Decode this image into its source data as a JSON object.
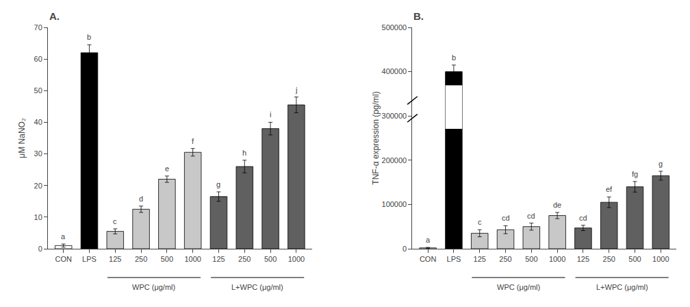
{
  "chart_data": [
    {
      "type": "bar",
      "title": "A.",
      "ylabel": "μM NaNO₂",
      "categories": [
        "CON",
        "LPS",
        "125",
        "250",
        "500",
        "1000",
        "125",
        "250",
        "500",
        "1000"
      ],
      "values": [
        1.0,
        62.0,
        5.5,
        12.5,
        22.0,
        30.5,
        16.5,
        26.0,
        38.0,
        45.5
      ],
      "errors": [
        0.5,
        2.5,
        0.8,
        1.0,
        1.0,
        1.2,
        1.5,
        2.0,
        2.0,
        2.5
      ],
      "bar_labels": [
        "a",
        "b",
        "c",
        "d",
        "e",
        "f",
        "g",
        "h",
        "i",
        "j"
      ],
      "colors": [
        "#ffffff",
        "#000000",
        "#c8c8c8",
        "#c8c8c8",
        "#c8c8c8",
        "#c8c8c8",
        "#606060",
        "#606060",
        "#606060",
        "#606060"
      ],
      "groups": [
        {
          "label": "WPC (μg/ml)",
          "indices": [
            2,
            5
          ]
        },
        {
          "label": "L+WPC (μg/ml)",
          "indices": [
            6,
            9
          ]
        }
      ],
      "ylim": [
        0,
        70
      ],
      "yticks": [
        0,
        10,
        20,
        30,
        40,
        50,
        60,
        70
      ],
      "grid": false
    },
    {
      "type": "bar",
      "title": "B.",
      "ylabel": "TNF-α expression (pg/ml)",
      "categories": [
        "CON",
        "LPS",
        "125",
        "250",
        "500",
        "1000",
        "125",
        "250",
        "500",
        "1000"
      ],
      "values": [
        2000,
        400000,
        35000,
        43000,
        50000,
        75000,
        47000,
        105000,
        140000,
        165000
      ],
      "errors": [
        1000,
        15000,
        8000,
        9000,
        8000,
        7000,
        6000,
        12000,
        12000,
        10000
      ],
      "bar_labels": [
        "a",
        "b",
        "c",
        "cd",
        "cd",
        "de",
        "cd",
        "ef",
        "fg",
        "g"
      ],
      "colors": [
        "#ffffff",
        "#000000",
        "#c8c8c8",
        "#c8c8c8",
        "#c8c8c8",
        "#c8c8c8",
        "#606060",
        "#606060",
        "#606060",
        "#606060"
      ],
      "groups": [
        {
          "label": "WPC (μg/ml)",
          "indices": [
            2,
            5
          ]
        },
        {
          "label": "L+WPC (μg/ml)",
          "indices": [
            6,
            9
          ]
        }
      ],
      "break": [
        270000,
        370000
      ],
      "ylim": [
        0,
        500000
      ],
      "yticks": [
        0,
        100000,
        200000,
        300000,
        400000,
        500000
      ],
      "grid": false
    }
  ]
}
